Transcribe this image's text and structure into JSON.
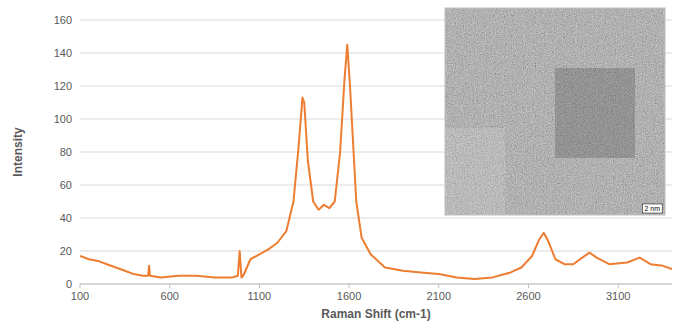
{
  "chart_data": {
    "type": "line",
    "x_label": "Raman Shift (cm-1)",
    "y_label": "Intensity",
    "annotations": [
      "2 nm"
    ],
    "color": "#ed7d31",
    "grid": true,
    "xlim": [
      100,
      3400
    ],
    "ylim": [
      0,
      160
    ],
    "xticks": [
      100,
      600,
      1100,
      1600,
      2100,
      2600,
      3100
    ],
    "yticks": [
      0,
      20,
      40,
      60,
      80,
      100,
      120,
      140,
      160
    ],
    "x": [
      100,
      150,
      200,
      250,
      300,
      350,
      400,
      450,
      480,
      485,
      490,
      550,
      650,
      750,
      850,
      950,
      980,
      990,
      1000,
      1010,
      1050,
      1100,
      1150,
      1200,
      1250,
      1290,
      1320,
      1340,
      1350,
      1370,
      1400,
      1430,
      1460,
      1490,
      1520,
      1550,
      1575,
      1590,
      1605,
      1620,
      1640,
      1670,
      1720,
      1800,
      1900,
      2000,
      2100,
      2200,
      2300,
      2400,
      2500,
      2560,
      2620,
      2660,
      2685,
      2710,
      2750,
      2800,
      2850,
      2900,
      2940,
      2980,
      3050,
      3150,
      3220,
      3280,
      3350,
      3400
    ],
    "values": [
      17,
      15,
      14,
      12,
      10,
      8,
      6,
      5,
      5,
      11,
      5,
      4,
      5,
      5,
      4,
      4,
      5,
      20,
      4,
      5,
      15,
      18,
      21,
      25,
      32,
      50,
      85,
      113,
      110,
      75,
      50,
      45,
      48,
      46,
      50,
      80,
      125,
      145,
      120,
      90,
      50,
      28,
      18,
      10,
      8,
      7,
      6,
      4,
      3,
      4,
      7,
      10,
      17,
      27,
      31,
      26,
      15,
      12,
      12,
      16,
      19,
      16,
      12,
      13,
      16,
      12,
      11,
      9
    ]
  }
}
